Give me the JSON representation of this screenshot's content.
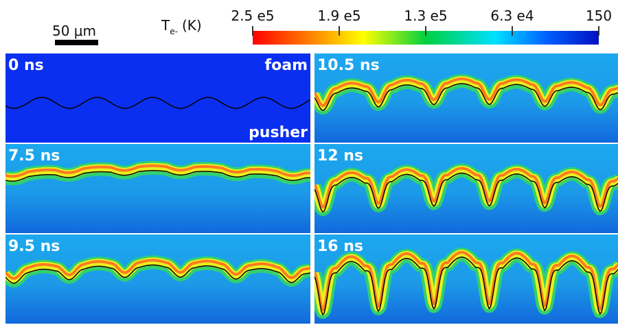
{
  "scale_bar": {
    "label": "50 μm"
  },
  "colorbar": {
    "symbol": "T",
    "subscript": "e-",
    "unit": "(K)",
    "ticks": [
      "2.5 e5",
      "1.9 e5",
      "1.3 e5",
      "6.3 e4",
      "150"
    ]
  },
  "panels": [
    {
      "label": "0 ns",
      "top_note": "foam",
      "bottom_note": "pusher"
    },
    {
      "label": "7.5 ns"
    },
    {
      "label": "9.5 ns"
    },
    {
      "label": "10.5 ns"
    },
    {
      "label": "12 ns"
    },
    {
      "label": "16 ns"
    }
  ]
}
